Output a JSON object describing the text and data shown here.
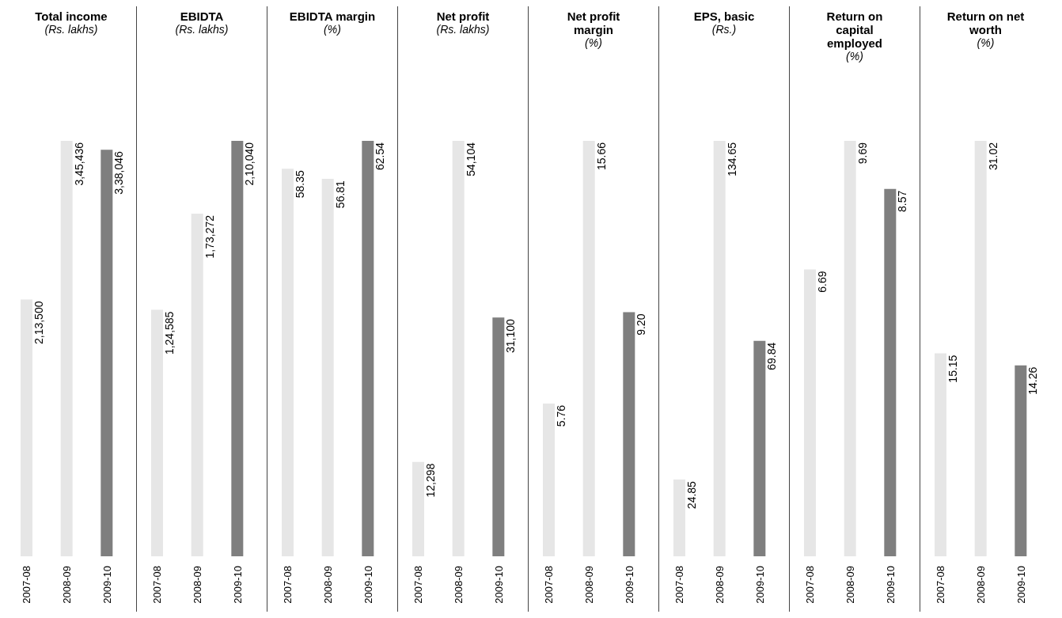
{
  "chart_data": [
    {
      "type": "bar",
      "title": "Total income",
      "subtitle": "(Rs. lakhs)",
      "categories": [
        "2007-08",
        "2008-09",
        "2009-10"
      ],
      "values": [
        213500,
        345436,
        338046
      ],
      "colors": [
        "#e6e6e6",
        "#e6e6e6",
        "#7f7f7f"
      ],
      "value_labels": [
        "2,13,500",
        "3,45,436",
        "3,38,046"
      ]
    },
    {
      "type": "bar",
      "title": "EBIDTA",
      "subtitle": "(Rs. lakhs)",
      "categories": [
        "2007-08",
        "2008-09",
        "2009-10"
      ],
      "values": [
        124585,
        173272,
        210040
      ],
      "colors": [
        "#e6e6e6",
        "#e6e6e6",
        "#7f7f7f"
      ],
      "value_labels": [
        "1,24,585",
        "1,73,272",
        "2,10,040"
      ]
    },
    {
      "type": "bar",
      "title": "EBIDTA margin",
      "subtitle": "(%)",
      "categories": [
        "2007-08",
        "2008-09",
        "2009-10"
      ],
      "values": [
        58.35,
        56.81,
        62.54
      ],
      "colors": [
        "#e6e6e6",
        "#e6e6e6",
        "#7f7f7f"
      ],
      "value_labels": [
        "58.35",
        "56.81",
        "62.54"
      ]
    },
    {
      "type": "bar",
      "title": "Net profit",
      "subtitle": "(Rs. lakhs)",
      "categories": [
        "2007-08",
        "2008-09",
        "2009-10"
      ],
      "values": [
        12298,
        54104,
        31100
      ],
      "colors": [
        "#e6e6e6",
        "#e6e6e6",
        "#7f7f7f"
      ],
      "value_labels": [
        "12,298",
        "54,104",
        "31,100"
      ]
    },
    {
      "type": "bar",
      "title": "Net profit margin",
      "subtitle": "(%)",
      "categories": [
        "2007-08",
        "2008-09",
        "2009-10"
      ],
      "values": [
        5.76,
        15.66,
        9.2
      ],
      "colors": [
        "#e6e6e6",
        "#e6e6e6",
        "#7f7f7f"
      ],
      "value_labels": [
        "5.76",
        "15.66",
        "9.20"
      ]
    },
    {
      "type": "bar",
      "title": "EPS, basic",
      "subtitle": "(Rs.)",
      "categories": [
        "2007-08",
        "2008-09",
        "2009-10"
      ],
      "values": [
        24.85,
        134.65,
        69.84
      ],
      "colors": [
        "#e6e6e6",
        "#e6e6e6",
        "#7f7f7f"
      ],
      "value_labels": [
        "24.85",
        "134.65",
        "69.84"
      ]
    },
    {
      "type": "bar",
      "title": "Return on capital employed",
      "subtitle": "(%)",
      "categories": [
        "2007-08",
        "2008-09",
        "2009-10"
      ],
      "values": [
        6.69,
        9.69,
        8.57
      ],
      "colors": [
        "#e6e6e6",
        "#e6e6e6",
        "#7f7f7f"
      ],
      "value_labels": [
        "6.69",
        "9.69",
        "8.57"
      ]
    },
    {
      "type": "bar",
      "title": "Return on net worth",
      "subtitle": "(%)",
      "categories": [
        "2007-08",
        "2008-09",
        "2009-10"
      ],
      "values": [
        15.15,
        31.02,
        14.26
      ],
      "colors": [
        "#e6e6e6",
        "#e6e6e6",
        "#7f7f7f"
      ],
      "value_labels": [
        "15.15",
        "31.02",
        "14.26"
      ]
    }
  ]
}
